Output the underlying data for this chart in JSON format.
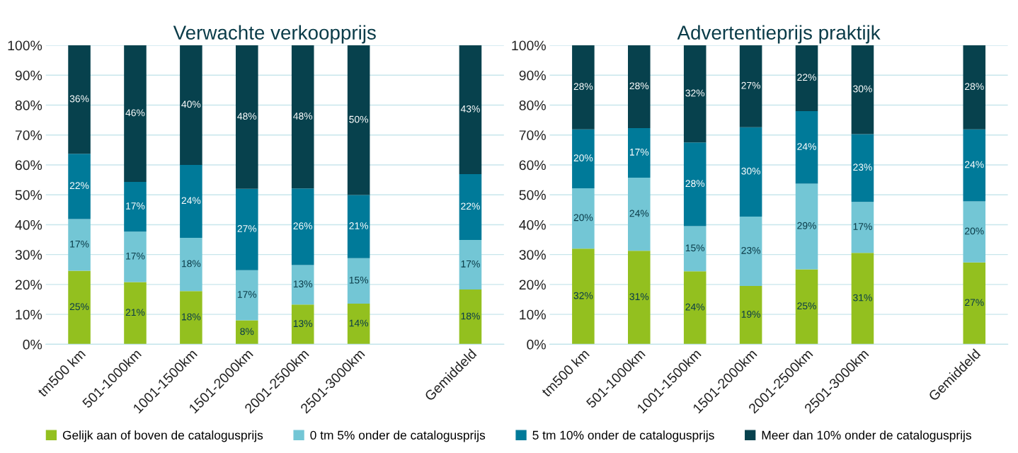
{
  "chart_data": [
    {
      "type": "bar",
      "title": "Verwachte verkoopprijs",
      "stacked": true,
      "grid": "y",
      "legend": "bottom",
      "categories": [
        "tm500 km",
        "501-1000km",
        "1001-1500km",
        "1501-2000km",
        "2001-2500km",
        "2501-3000km",
        null,
        "Gemiddeld"
      ],
      "ylim": [
        0,
        100
      ],
      "yticks": [
        {
          "value": 0,
          "label": "0%"
        },
        {
          "value": 10,
          "label": "10%"
        },
        {
          "value": 20,
          "label": "20%"
        },
        {
          "value": 30,
          "label": "30%"
        },
        {
          "value": 40,
          "label": "40%"
        },
        {
          "value": 50,
          "label": "50%"
        },
        {
          "value": 60,
          "label": "60%"
        },
        {
          "value": 70,
          "label": "70%"
        },
        {
          "value": 80,
          "label": "80%"
        },
        {
          "value": 90,
          "label": "90%"
        },
        {
          "value": 100,
          "label": "100%"
        }
      ],
      "series": [
        {
          "name": "Gelijk aan of boven de catalogusprijs",
          "color": "#93c01f",
          "values": [
            24.6,
            20.8,
            17.8,
            8.0,
            13.3,
            13.6,
            null,
            18.3
          ],
          "value_labels": [
            "25%",
            "21%",
            "18%",
            "8%",
            "13%",
            "14%",
            null,
            "18%"
          ]
        },
        {
          "name": "0 tm 5% onder de catalogusprijs",
          "color": "#73c6d5",
          "values": [
            17.3,
            16.9,
            17.8,
            16.8,
            13.2,
            15.2,
            null,
            16.6
          ],
          "value_labels": [
            "17%",
            "17%",
            "18%",
            "17%",
            "13%",
            "15%",
            null,
            "17%"
          ]
        },
        {
          "name": "5 tm 10% onder de catalogusprijs",
          "color": "#007a99",
          "values": [
            21.8,
            16.6,
            24.4,
            27.2,
            25.6,
            21.1,
            null,
            22.0
          ],
          "value_labels": [
            "22%",
            "17%",
            "24%",
            "27%",
            "26%",
            "21%",
            null,
            "22%"
          ]
        },
        {
          "name": "Meer dan 10% onder de catalogusprijs",
          "color": "#07414d",
          "values": [
            36.3,
            45.7,
            40.0,
            48.0,
            47.9,
            50.1,
            null,
            43.1
          ],
          "value_labels": [
            "36%",
            "46%",
            "40%",
            "48%",
            "48%",
            "50%",
            null,
            "43%"
          ]
        }
      ]
    },
    {
      "type": "bar",
      "title": "Advertentieprijs praktijk",
      "stacked": true,
      "grid": "y",
      "categories": [
        "tm500 km",
        "501-1000km",
        "1001-1500km",
        "1501-2000km",
        "2001-2500km",
        "2501-3000km",
        null,
        "Gemiddeld"
      ],
      "ylim": [
        0,
        100
      ],
      "yticks": [
        {
          "value": 0,
          "label": "0%"
        },
        {
          "value": 10,
          "label": "10%"
        },
        {
          "value": 20,
          "label": "20%"
        },
        {
          "value": 30,
          "label": "30%"
        },
        {
          "value": 40,
          "label": "40%"
        },
        {
          "value": 50,
          "label": "50%"
        },
        {
          "value": 60,
          "label": "60%"
        },
        {
          "value": 70,
          "label": "70%"
        },
        {
          "value": 80,
          "label": "80%"
        },
        {
          "value": 90,
          "label": "90%"
        },
        {
          "value": 100,
          "label": "100%"
        }
      ],
      "series": [
        {
          "color": "#93c01f",
          "values": [
            32.0,
            31.3,
            24.4,
            19.5,
            25.1,
            30.6,
            null,
            27.4
          ],
          "value_labels": [
            "32%",
            "31%",
            "24%",
            "19%",
            "25%",
            "31%",
            null,
            "27%"
          ]
        },
        {
          "color": "#73c6d5",
          "values": [
            20.2,
            24.4,
            15.1,
            23.2,
            28.6,
            17.0,
            null,
            20.4
          ],
          "value_labels": [
            "20%",
            "24%",
            "15%",
            "23%",
            "29%",
            "17%",
            null,
            "20%"
          ]
        },
        {
          "color": "#007a99",
          "values": [
            19.7,
            16.6,
            28.0,
            29.9,
            24.3,
            22.7,
            null,
            24.1
          ],
          "value_labels": [
            "20%",
            "17%",
            "28%",
            "30%",
            "24%",
            "23%",
            null,
            "24%"
          ]
        },
        {
          "color": "#07414d",
          "values": [
            28.1,
            27.7,
            32.5,
            27.4,
            22.0,
            29.7,
            null,
            28.1
          ],
          "value_labels": [
            "28%",
            "28%",
            "32%",
            "27%",
            "22%",
            "30%",
            null,
            "28%"
          ]
        }
      ]
    }
  ]
}
